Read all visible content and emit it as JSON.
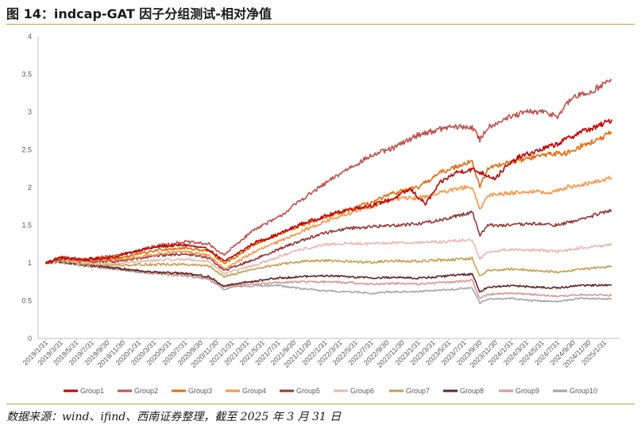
{
  "figure": {
    "title": "图 14：indcap-GAT 因子分组测试-相对净值",
    "source": "数据来源：wind、ifind、西南证券整理，截至 2025 年 3 月 31 日"
  },
  "chart_data": {
    "type": "line",
    "title": "",
    "xlabel": "",
    "ylabel": "",
    "ylim": [
      0,
      4
    ],
    "yticks": [
      "0",
      "0.5",
      "1",
      "1.5",
      "2",
      "2.5",
      "3",
      "3.5",
      "4"
    ],
    "xticks": [
      "2019/1/31",
      "2019/3/31",
      "2019/5/31",
      "2019/7/31",
      "2019/9/30",
      "2019/11/30",
      "2020/1/31",
      "2020/3/31",
      "2020/5/31",
      "2020/7/31",
      "2020/9/30",
      "2020/11/30",
      "2021/1/31",
      "2021/3/31",
      "2021/5/31",
      "2021/7/31",
      "2021/9/30",
      "2021/11/30",
      "2022/1/31",
      "2022/3/31",
      "2022/5/31",
      "2022/7/31",
      "2022/9/30",
      "2022/11/30",
      "2023/1/31",
      "2023/3/31",
      "2023/5/31",
      "2023/7/31",
      "2023/9/30",
      "2023/11/30",
      "2024/1/31",
      "2024/3/31",
      "2024/5/31",
      "2024/7/31",
      "2024/9/30",
      "2024/11/30",
      "2025/1/31"
    ],
    "x_range": [
      "2019/1/1",
      "2025/3/31"
    ],
    "grid": false,
    "legend_position": "bottom",
    "series": [
      {
        "name": "Group1",
        "color": "#c00000",
        "values": [
          [
            0,
            1.0
          ],
          [
            2,
            1.07
          ],
          [
            5,
            1.04
          ],
          [
            9,
            1.08
          ],
          [
            12,
            1.17
          ],
          [
            15,
            1.22
          ],
          [
            18,
            1.24
          ],
          [
            21,
            1.18
          ],
          [
            23,
            1.02
          ],
          [
            24,
            1.08
          ],
          [
            27,
            1.27
          ],
          [
            30,
            1.38
          ],
          [
            33,
            1.52
          ],
          [
            36,
            1.62
          ],
          [
            39,
            1.71
          ],
          [
            42,
            1.76
          ],
          [
            45,
            1.86
          ],
          [
            47,
            1.98
          ],
          [
            49,
            1.78
          ],
          [
            51,
            2.07
          ],
          [
            53,
            2.2
          ],
          [
            55,
            2.24
          ],
          [
            58,
            2.12
          ],
          [
            59,
            2.24
          ],
          [
            61,
            2.4
          ],
          [
            63,
            2.47
          ],
          [
            66,
            2.58
          ],
          [
            69,
            2.74
          ],
          [
            71,
            2.8
          ],
          [
            73,
            2.9
          ]
        ]
      },
      {
        "name": "Group2",
        "color": "#c0504d",
        "values": [
          [
            0,
            1.0
          ],
          [
            2,
            1.08
          ],
          [
            5,
            1.05
          ],
          [
            9,
            1.1
          ],
          [
            12,
            1.17
          ],
          [
            15,
            1.24
          ],
          [
            18,
            1.28
          ],
          [
            21,
            1.25
          ],
          [
            23,
            1.1
          ],
          [
            24,
            1.2
          ],
          [
            27,
            1.45
          ],
          [
            30,
            1.6
          ],
          [
            33,
            1.84
          ],
          [
            36,
            2.05
          ],
          [
            39,
            2.25
          ],
          [
            42,
            2.42
          ],
          [
            45,
            2.53
          ],
          [
            48,
            2.7
          ],
          [
            52,
            2.8
          ],
          [
            55,
            2.8
          ],
          [
            56,
            2.63
          ],
          [
            57,
            2.8
          ],
          [
            59,
            2.9
          ],
          [
            62,
            3.0
          ],
          [
            64,
            3.0
          ],
          [
            66,
            2.95
          ],
          [
            68,
            3.2
          ],
          [
            70,
            3.25
          ],
          [
            72,
            3.38
          ],
          [
            73,
            3.42
          ]
        ]
      },
      {
        "name": "Group3",
        "color": "#e46c0a",
        "values": [
          [
            0,
            1.0
          ],
          [
            2,
            1.06
          ],
          [
            5,
            1.04
          ],
          [
            9,
            1.06
          ],
          [
            12,
            1.12
          ],
          [
            15,
            1.18
          ],
          [
            18,
            1.2
          ],
          [
            21,
            1.16
          ],
          [
            23,
            1.0
          ],
          [
            24,
            1.05
          ],
          [
            27,
            1.25
          ],
          [
            30,
            1.37
          ],
          [
            33,
            1.5
          ],
          [
            36,
            1.6
          ],
          [
            39,
            1.7
          ],
          [
            42,
            1.8
          ],
          [
            45,
            1.93
          ],
          [
            48,
            2.0
          ],
          [
            51,
            2.2
          ],
          [
            54,
            2.32
          ],
          [
            55,
            2.35
          ],
          [
            56,
            2.0
          ],
          [
            57,
            2.25
          ],
          [
            59,
            2.32
          ],
          [
            62,
            2.38
          ],
          [
            65,
            2.45
          ],
          [
            67,
            2.45
          ],
          [
            69,
            2.55
          ],
          [
            71,
            2.62
          ],
          [
            73,
            2.73
          ]
        ]
      },
      {
        "name": "Group4",
        "color": "#f79646",
        "values": [
          [
            0,
            1.0
          ],
          [
            2,
            1.05
          ],
          [
            5,
            1.03
          ],
          [
            9,
            1.04
          ],
          [
            12,
            1.08
          ],
          [
            15,
            1.13
          ],
          [
            18,
            1.15
          ],
          [
            21,
            1.1
          ],
          [
            23,
            0.92
          ],
          [
            24,
            0.98
          ],
          [
            27,
            1.15
          ],
          [
            30,
            1.28
          ],
          [
            33,
            1.42
          ],
          [
            36,
            1.55
          ],
          [
            39,
            1.65
          ],
          [
            42,
            1.75
          ],
          [
            45,
            1.85
          ],
          [
            48,
            1.86
          ],
          [
            51,
            1.93
          ],
          [
            54,
            2.0
          ],
          [
            55,
            2.0
          ],
          [
            56,
            1.7
          ],
          [
            57,
            1.9
          ],
          [
            60,
            1.93
          ],
          [
            63,
            1.95
          ],
          [
            65,
            1.92
          ],
          [
            67,
            2.0
          ],
          [
            70,
            2.05
          ],
          [
            73,
            2.13
          ]
        ]
      },
      {
        "name": "Group5",
        "color": "#953735",
        "values": [
          [
            0,
            1.0
          ],
          [
            2,
            1.05
          ],
          [
            5,
            1.02
          ],
          [
            9,
            1.02
          ],
          [
            12,
            1.06
          ],
          [
            15,
            1.1
          ],
          [
            18,
            1.12
          ],
          [
            21,
            1.07
          ],
          [
            23,
            0.9
          ],
          [
            24,
            0.94
          ],
          [
            27,
            1.05
          ],
          [
            30,
            1.18
          ],
          [
            33,
            1.3
          ],
          [
            36,
            1.4
          ],
          [
            39,
            1.46
          ],
          [
            42,
            1.48
          ],
          [
            45,
            1.5
          ],
          [
            48,
            1.52
          ],
          [
            51,
            1.57
          ],
          [
            54,
            1.65
          ],
          [
            55,
            1.68
          ],
          [
            56,
            1.37
          ],
          [
            57,
            1.5
          ],
          [
            60,
            1.5
          ],
          [
            63,
            1.52
          ],
          [
            66,
            1.5
          ],
          [
            69,
            1.58
          ],
          [
            73,
            1.7
          ]
        ]
      },
      {
        "name": "Group6",
        "color": "#e6b9b8",
        "values": [
          [
            0,
            1.0
          ],
          [
            2,
            1.04
          ],
          [
            5,
            1.0
          ],
          [
            9,
            0.99
          ],
          [
            12,
            1.02
          ],
          [
            15,
            1.04
          ],
          [
            18,
            1.05
          ],
          [
            21,
            1.02
          ],
          [
            23,
            0.86
          ],
          [
            24,
            0.89
          ],
          [
            27,
            0.97
          ],
          [
            30,
            1.08
          ],
          [
            33,
            1.18
          ],
          [
            36,
            1.24
          ],
          [
            39,
            1.26
          ],
          [
            42,
            1.25
          ],
          [
            45,
            1.27
          ],
          [
            48,
            1.27
          ],
          [
            51,
            1.28
          ],
          [
            54,
            1.3
          ],
          [
            55,
            1.31
          ],
          [
            56,
            1.05
          ],
          [
            57,
            1.15
          ],
          [
            60,
            1.18
          ],
          [
            63,
            1.17
          ],
          [
            66,
            1.15
          ],
          [
            69,
            1.2
          ],
          [
            73,
            1.24
          ]
        ]
      },
      {
        "name": "Group7",
        "color": "#c5a04e",
        "values": [
          [
            0,
            1.0
          ],
          [
            2,
            1.03
          ],
          [
            5,
            0.99
          ],
          [
            9,
            0.97
          ],
          [
            12,
            0.98
          ],
          [
            15,
            0.98
          ],
          [
            18,
            0.98
          ],
          [
            21,
            0.96
          ],
          [
            23,
            0.82
          ],
          [
            24,
            0.85
          ],
          [
            27,
            0.92
          ],
          [
            30,
            0.98
          ],
          [
            33,
            1.02
          ],
          [
            36,
            1.03
          ],
          [
            39,
            1.02
          ],
          [
            42,
            1.01
          ],
          [
            45,
            1.03
          ],
          [
            48,
            1.02
          ],
          [
            51,
            1.04
          ],
          [
            54,
            1.05
          ],
          [
            55,
            1.06
          ],
          [
            56,
            0.82
          ],
          [
            57,
            0.9
          ],
          [
            60,
            0.92
          ],
          [
            63,
            0.9
          ],
          [
            66,
            0.88
          ],
          [
            69,
            0.92
          ],
          [
            73,
            0.95
          ]
        ]
      },
      {
        "name": "Group8",
        "color": "#632523",
        "values": [
          [
            0,
            1.0
          ],
          [
            2,
            1.02
          ],
          [
            5,
            0.98
          ],
          [
            9,
            0.93
          ],
          [
            12,
            0.9
          ],
          [
            15,
            0.87
          ],
          [
            18,
            0.86
          ],
          [
            21,
            0.82
          ],
          [
            23,
            0.69
          ],
          [
            24,
            0.72
          ],
          [
            27,
            0.76
          ],
          [
            30,
            0.8
          ],
          [
            33,
            0.82
          ],
          [
            36,
            0.83
          ],
          [
            39,
            0.82
          ],
          [
            42,
            0.8
          ],
          [
            45,
            0.81
          ],
          [
            48,
            0.8
          ],
          [
            51,
            0.82
          ],
          [
            54,
            0.85
          ],
          [
            55,
            0.85
          ],
          [
            56,
            0.62
          ],
          [
            57,
            0.68
          ],
          [
            60,
            0.7
          ],
          [
            63,
            0.68
          ],
          [
            66,
            0.67
          ],
          [
            69,
            0.7
          ],
          [
            73,
            0.71
          ]
        ]
      },
      {
        "name": "Group9",
        "color": "#d99694",
        "values": [
          [
            0,
            1.0
          ],
          [
            2,
            1.02
          ],
          [
            5,
            0.97
          ],
          [
            9,
            0.93
          ],
          [
            12,
            0.89
          ],
          [
            15,
            0.86
          ],
          [
            18,
            0.85
          ],
          [
            21,
            0.8
          ],
          [
            23,
            0.68
          ],
          [
            24,
            0.7
          ],
          [
            27,
            0.72
          ],
          [
            30,
            0.74
          ],
          [
            33,
            0.75
          ],
          [
            36,
            0.75
          ],
          [
            39,
            0.74
          ],
          [
            42,
            0.72
          ],
          [
            45,
            0.73
          ],
          [
            48,
            0.72
          ],
          [
            51,
            0.74
          ],
          [
            54,
            0.76
          ],
          [
            55,
            0.77
          ],
          [
            56,
            0.53
          ],
          [
            57,
            0.58
          ],
          [
            60,
            0.6
          ],
          [
            63,
            0.58
          ],
          [
            66,
            0.56
          ],
          [
            69,
            0.58
          ],
          [
            73,
            0.57
          ]
        ]
      },
      {
        "name": "Group10",
        "color": "#a6a6a6",
        "values": [
          [
            0,
            1.0
          ],
          [
            2,
            1.01
          ],
          [
            5,
            0.96
          ],
          [
            9,
            0.92
          ],
          [
            12,
            0.88
          ],
          [
            15,
            0.85
          ],
          [
            18,
            0.83
          ],
          [
            21,
            0.78
          ],
          [
            23,
            0.65
          ],
          [
            24,
            0.68
          ],
          [
            27,
            0.7
          ],
          [
            30,
            0.7
          ],
          [
            33,
            0.66
          ],
          [
            36,
            0.63
          ],
          [
            39,
            0.62
          ],
          [
            42,
            0.6
          ],
          [
            45,
            0.62
          ],
          [
            48,
            0.62
          ],
          [
            51,
            0.64
          ],
          [
            54,
            0.66
          ],
          [
            55,
            0.67
          ],
          [
            56,
            0.47
          ],
          [
            57,
            0.52
          ],
          [
            60,
            0.53
          ],
          [
            63,
            0.5
          ],
          [
            66,
            0.49
          ],
          [
            69,
            0.53
          ],
          [
            73,
            0.52
          ]
        ]
      }
    ]
  }
}
